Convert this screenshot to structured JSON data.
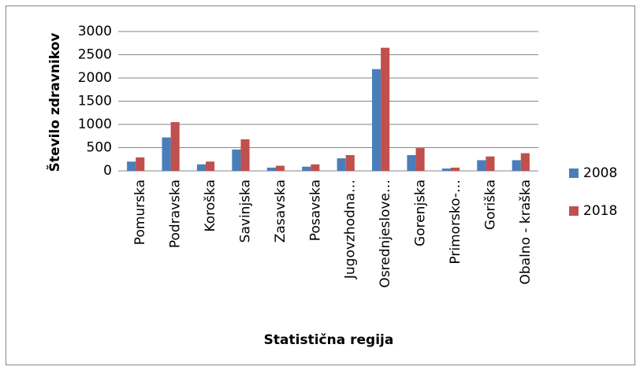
{
  "chart_data": {
    "type": "bar",
    "y_axis_label": "Število zdravnikov",
    "x_axis_label": "Statistična regija",
    "categories": [
      "Pomurska",
      "Podravska",
      "Koroška",
      "Savinjska",
      "Zasavska",
      "Posavska",
      "Jugovzhodna…",
      "Osrednjeslove…",
      "Gorenjska",
      "Primorsko-…",
      "Goriška",
      "Obalno - kraška"
    ],
    "series": [
      {
        "name": "2008",
        "color": "#4a7ebb",
        "values": [
          200,
          720,
          140,
          460,
          70,
          90,
          270,
          2190,
          340,
          50,
          230,
          230
        ]
      },
      {
        "name": "2018",
        "color": "#c0504d",
        "values": [
          290,
          1050,
          200,
          680,
          110,
          140,
          340,
          2650,
          490,
          70,
          310,
          380
        ]
      }
    ],
    "ylim": [
      0,
      3000
    ],
    "yticks": [
      0,
      500,
      1000,
      1500,
      2000,
      2500,
      3000
    ],
    "grid": true,
    "legend": "right"
  }
}
